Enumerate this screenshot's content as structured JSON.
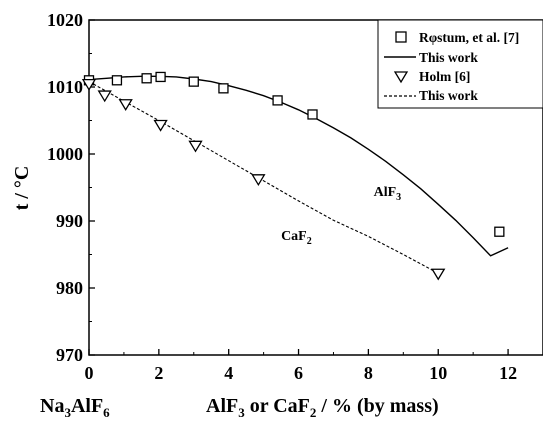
{
  "chart_data": {
    "type": "scatter",
    "ylabel": "t / °C",
    "xlabel_left": {
      "main": "Na",
      "sub1": "3",
      "mid": "AlF",
      "sub2": "6"
    },
    "xlabel": {
      "a": "AlF",
      "a_sub": "3",
      "b": " or CaF",
      "b_sub": "2",
      "c": " / % (by mass)"
    },
    "xlim": [
      0,
      13
    ],
    "ylim": [
      970,
      1020
    ],
    "x_ticks": [
      0,
      2,
      4,
      6,
      8,
      10,
      12
    ],
    "y_ticks": [
      970,
      980,
      990,
      1000,
      1010,
      1020
    ],
    "grid": false,
    "legend_position": "top-right",
    "series": [
      {
        "name": "Rφstum, et al. [7]",
        "kind": "points",
        "marker": "square",
        "x": [
          0,
          0.8,
          1.65,
          2.05,
          3.0,
          3.85,
          5.4,
          6.4,
          11.75
        ],
        "y": [
          1011.0,
          1011.0,
          1011.3,
          1011.5,
          1010.8,
          1009.8,
          1008.0,
          1005.9,
          988.4
        ]
      },
      {
        "name": "This work",
        "kind": "line",
        "dash": "solid",
        "x": [
          0,
          0.5,
          1,
          1.5,
          2,
          2.5,
          3,
          3.5,
          4,
          4.5,
          5,
          5.5,
          6,
          6.5,
          7,
          7.5,
          8,
          8.5,
          9,
          9.5,
          10,
          10.5,
          11,
          11.5,
          12
        ],
        "y": [
          1011.1,
          1011.3,
          1011.5,
          1011.6,
          1011.6,
          1011.5,
          1011.2,
          1010.8,
          1010.2,
          1009.5,
          1008.7,
          1007.7,
          1006.6,
          1005.3,
          1003.9,
          1002.4,
          1000.7,
          998.9,
          996.9,
          994.8,
          992.5,
          990.1,
          987.5,
          984.8,
          986.0
        ]
      },
      {
        "name": "Holm [6]",
        "kind": "points",
        "marker": "triangle-down",
        "x": [
          0,
          0.45,
          1.05,
          2.05,
          3.05,
          4.85,
          10.0
        ],
        "y": [
          1010.5,
          1008.8,
          1007.5,
          1004.4,
          1001.3,
          996.3,
          982.2
        ]
      },
      {
        "name": "This work",
        "kind": "line",
        "dash": "dashed",
        "x": [
          0,
          1,
          2,
          3,
          4,
          5,
          6,
          7,
          8,
          9,
          10
        ],
        "y": [
          1010.8,
          1007.9,
          1005.0,
          1002.0,
          999.0,
          996.0,
          993.0,
          990.1,
          987.7,
          985.0,
          982.2
        ]
      }
    ],
    "annotations": [
      {
        "name": "AlF3",
        "text": "AlF",
        "sub": "3",
        "x": 8.15,
        "y": 993.7
      },
      {
        "name": "CaF2",
        "text": "CaF",
        "sub": "2",
        "x": 5.5,
        "y": 987.2
      }
    ]
  },
  "colors": {
    "ink": "#000000",
    "background": "#ffffff"
  }
}
